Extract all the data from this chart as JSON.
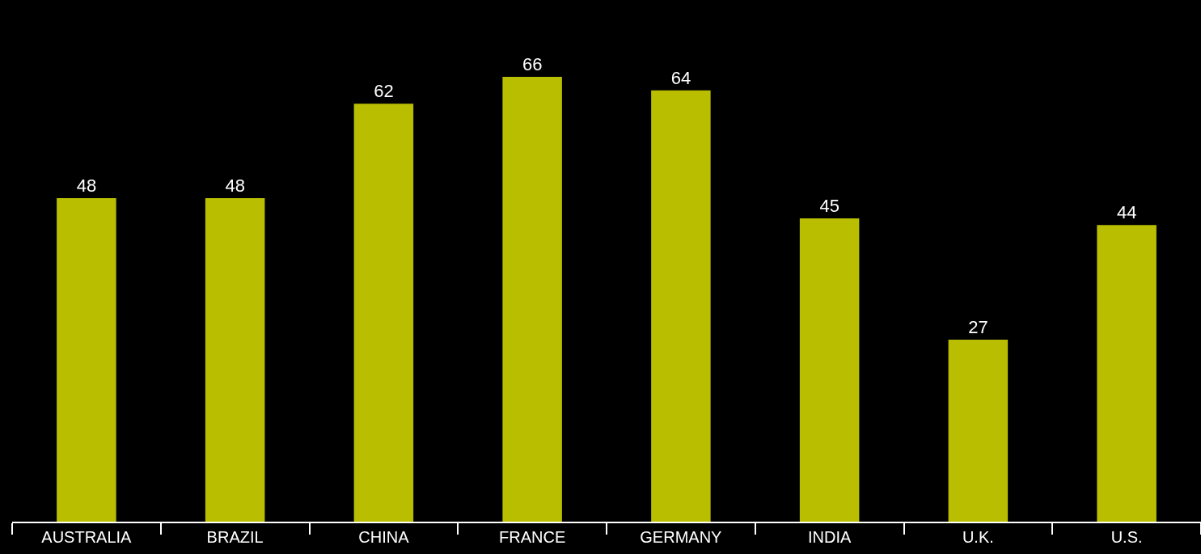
{
  "chart_data": {
    "type": "bar",
    "categories": [
      "AUSTRALIA",
      "BRAZIL",
      "CHINA",
      "FRANCE",
      "GERMANY",
      "INDIA",
      "U.K.",
      "U.S."
    ],
    "values": [
      48,
      48,
      62,
      66,
      64,
      45,
      27,
      44
    ],
    "color": "#b9bf00",
    "data_labels": true
  }
}
